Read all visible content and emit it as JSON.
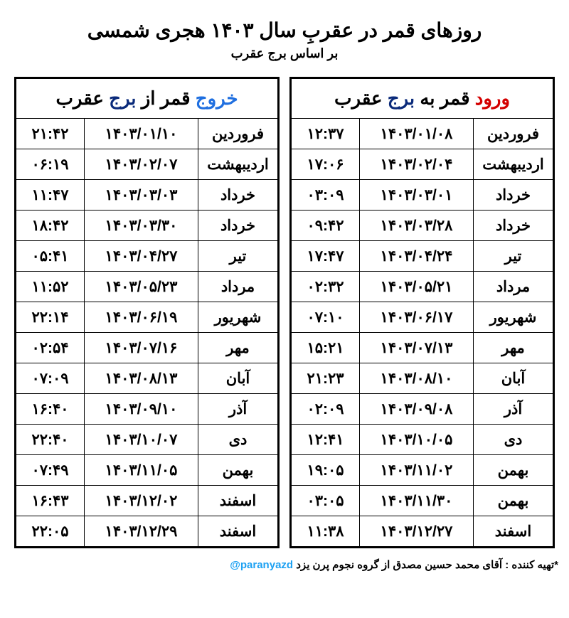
{
  "title": "روزهای قمر در عقربِ سال ۱۴۰۳ هجری شمسی",
  "subtitle": "بر اساس برج عقرب",
  "colors": {
    "keyword_red": "#d40000",
    "keyword_navy": "#0a2a7a",
    "keyword_blue": "#1f6fe0",
    "border": "#000000",
    "background": "#ffffff",
    "text": "#000000",
    "handle": "#1da1f2"
  },
  "entry_table": {
    "header": {
      "keyword": "ورود",
      "mid": " قمر به ",
      "burj": "برج",
      "rest": " عقرب"
    },
    "rows": [
      {
        "time": "۱۲:۳۷",
        "date": "۱۴۰۳/۰۱/۰۸",
        "month": "فروردین"
      },
      {
        "time": "۱۷:۰۶",
        "date": "۱۴۰۳/۰۲/۰۴",
        "month": "اردیبهشت"
      },
      {
        "time": "۰۳:۰۹",
        "date": "۱۴۰۳/۰۳/۰۱",
        "month": "خرداد"
      },
      {
        "time": "۰۹:۴۲",
        "date": "۱۴۰۳/۰۳/۲۸",
        "month": "خرداد"
      },
      {
        "time": "۱۷:۴۷",
        "date": "۱۴۰۳/۰۴/۲۴",
        "month": "تیر"
      },
      {
        "time": "۰۲:۳۲",
        "date": "۱۴۰۳/۰۵/۲۱",
        "month": "مرداد"
      },
      {
        "time": "۰۷:۱۰",
        "date": "۱۴۰۳/۰۶/۱۷",
        "month": "شهریور"
      },
      {
        "time": "۱۵:۲۱",
        "date": "۱۴۰۳/۰۷/۱۳",
        "month": "مهر"
      },
      {
        "time": "۲۱:۲۳",
        "date": "۱۴۰۳/۰۸/۱۰",
        "month": "آبان"
      },
      {
        "time": "۰۲:۰۹",
        "date": "۱۴۰۳/۰۹/۰۸",
        "month": "آذر"
      },
      {
        "time": "۱۲:۴۱",
        "date": "۱۴۰۳/۱۰/۰۵",
        "month": "دی"
      },
      {
        "time": "۱۹:۰۵",
        "date": "۱۴۰۳/۱۱/۰۲",
        "month": "بهمن"
      },
      {
        "time": "۰۳:۰۵",
        "date": "۱۴۰۳/۱۱/۳۰",
        "month": "بهمن"
      },
      {
        "time": "۱۱:۳۸",
        "date": "۱۴۰۳/۱۲/۲۷",
        "month": "اسفند"
      }
    ]
  },
  "exit_table": {
    "header": {
      "keyword": "خروج",
      "mid": " قمر از ",
      "burj": "برج",
      "rest": " عقرب"
    },
    "rows": [
      {
        "time": "۲۱:۴۲",
        "date": "۱۴۰۳/۰۱/۱۰",
        "month": "فروردین"
      },
      {
        "time": "۰۶:۱۹",
        "date": "۱۴۰۳/۰۲/۰۷",
        "month": "اردیبهشت"
      },
      {
        "time": "۱۱:۴۷",
        "date": "۱۴۰۳/۰۳/۰۳",
        "month": "خرداد"
      },
      {
        "time": "۱۸:۴۲",
        "date": "۱۴۰۳/۰۳/۳۰",
        "month": "خرداد"
      },
      {
        "time": "۰۵:۴۱",
        "date": "۱۴۰۳/۰۴/۲۷",
        "month": "تیر"
      },
      {
        "time": "۱۱:۵۲",
        "date": "۱۴۰۳/۰۵/۲۳",
        "month": "مرداد"
      },
      {
        "time": "۲۲:۱۴",
        "date": "۱۴۰۳/۰۶/۱۹",
        "month": "شهریور"
      },
      {
        "time": "۰۲:۵۴",
        "date": "۱۴۰۳/۰۷/۱۶",
        "month": "مهر"
      },
      {
        "time": "۰۷:۰۹",
        "date": "۱۴۰۳/۰۸/۱۳",
        "month": "آبان"
      },
      {
        "time": "۱۶:۴۰",
        "date": "۱۴۰۳/۰۹/۱۰",
        "month": "آذر"
      },
      {
        "time": "۲۲:۴۰",
        "date": "۱۴۰۳/۱۰/۰۷",
        "month": "دی"
      },
      {
        "time": "۰۷:۴۹",
        "date": "۱۴۰۳/۱۱/۰۵",
        "month": "بهمن"
      },
      {
        "time": "۱۶:۴۳",
        "date": "۱۴۰۳/۱۲/۰۲",
        "month": "اسفند"
      },
      {
        "time": "۲۲:۰۵",
        "date": "۱۴۰۳/۱۲/۲۹",
        "month": "اسفند"
      }
    ]
  },
  "footer": {
    "prefix": "*تهیه کننده : آقای محمد حسین مصدق از گروه نجوم پرن یزد ",
    "handle": "@paranyazd"
  }
}
